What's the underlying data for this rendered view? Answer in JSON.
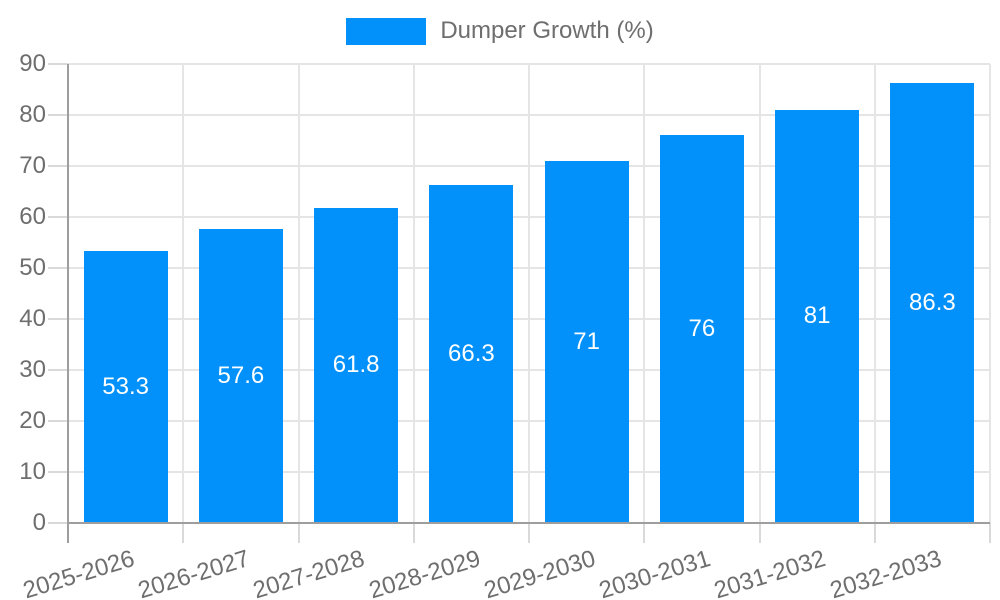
{
  "legend": {
    "label": "Dumper Growth (%)"
  },
  "colors": {
    "bar": "#0291fa",
    "grid": "#e5e5e5",
    "tick": "#d9d9d9",
    "axis": "#9e9e9e",
    "text": "#6e6e6e",
    "value_label": "#ffffff",
    "background": "#ffffff"
  },
  "chart_data": {
    "type": "bar",
    "title": "",
    "xlabel": "",
    "ylabel": "",
    "categories": [
      "2025-2026",
      "2026-2027",
      "2027-2028",
      "2028-2029",
      "2029-2030",
      "2030-2031",
      "2031-2032",
      "2032-2033"
    ],
    "series": [
      {
        "name": "Dumper Growth (%)",
        "values": [
          53.3,
          57.6,
          61.8,
          66.3,
          71,
          76,
          81,
          86.3
        ],
        "value_labels": [
          "53.3",
          "57.6",
          "61.8",
          "66.3",
          "71",
          "76",
          "81",
          "86.3"
        ]
      }
    ],
    "ylim": [
      0,
      90
    ],
    "ytick_step": 10,
    "ytick_labels": [
      "0",
      "10",
      "20",
      "30",
      "40",
      "50",
      "60",
      "70",
      "80",
      "90"
    ],
    "grid": true,
    "legend_position": "top",
    "value_label_position": "center"
  }
}
